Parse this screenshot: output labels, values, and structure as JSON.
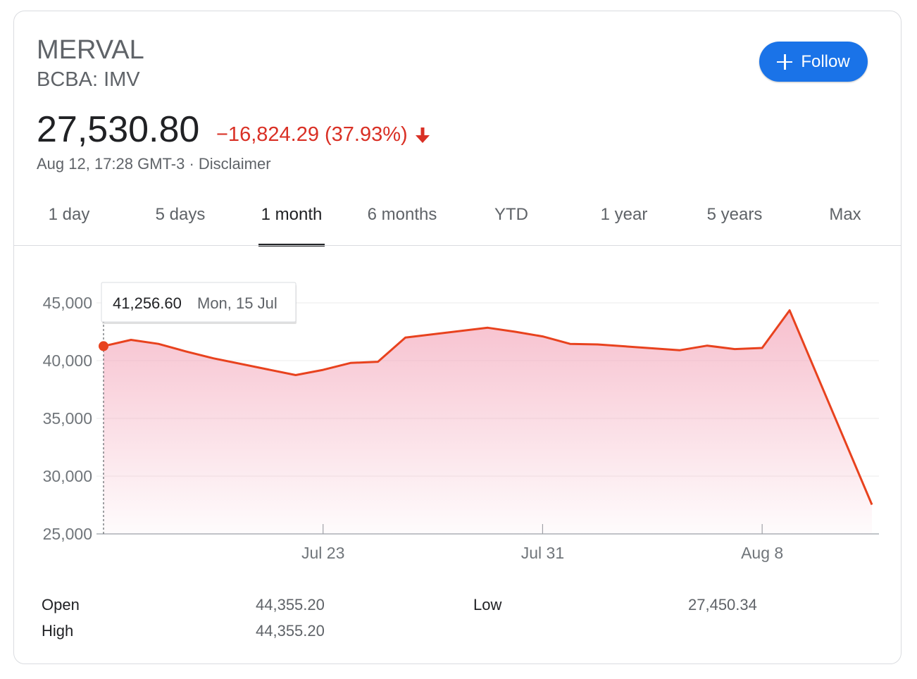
{
  "header": {
    "name": "MERVAL",
    "ticker": "BCBA: IMV",
    "follow_label": "Follow"
  },
  "quote": {
    "price": "27,530.80",
    "change": "−16,824.29 (37.93%)",
    "timestamp": "Aug 12, 17:28 GMT-3 · Disclaimer",
    "change_color": "#d93025"
  },
  "tabs": [
    {
      "label": "1 day"
    },
    {
      "label": "5 days"
    },
    {
      "label": "1 month",
      "active": true
    },
    {
      "label": "6 months"
    },
    {
      "label": "YTD"
    },
    {
      "label": "1 year"
    },
    {
      "label": "5 years"
    },
    {
      "label": "Max"
    }
  ],
  "tooltip": {
    "value": "41,256.60",
    "date": "Mon, 15 Jul"
  },
  "chart_data": {
    "type": "area",
    "ylim": [
      25000,
      45000
    ],
    "yticks": [
      45000,
      40000,
      35000,
      30000,
      25000
    ],
    "ytick_labels": [
      "45,000",
      "40,000",
      "35,000",
      "30,000",
      "25,000"
    ],
    "xlim": [
      "2019-07-15",
      "2019-08-12"
    ],
    "xticks": [
      "2019-07-23",
      "2019-07-31",
      "2019-08-08"
    ],
    "xtick_labels": [
      "Jul 23",
      "Jul 31",
      "Aug 8"
    ],
    "line_color": "#e8421e",
    "fill_color": "#f4aabd",
    "grid": true,
    "series": [
      {
        "x": [
          "2019-07-15",
          "2019-07-16",
          "2019-07-17",
          "2019-07-18",
          "2019-07-19",
          "2019-07-22",
          "2019-07-23",
          "2019-07-24",
          "2019-07-25",
          "2019-07-26",
          "2019-07-29",
          "2019-07-30",
          "2019-07-31",
          "2019-08-01",
          "2019-08-02",
          "2019-08-05",
          "2019-08-06",
          "2019-08-07",
          "2019-08-08",
          "2019-08-09",
          "2019-08-12"
        ],
        "values": [
          41256.6,
          41800,
          41450,
          40800,
          40200,
          38750,
          39200,
          39800,
          39900,
          42000,
          42850,
          42500,
          42100,
          41450,
          41400,
          40900,
          41300,
          41000,
          41100,
          44355.2,
          27530.8
        ]
      }
    ]
  },
  "stats": {
    "open_label": "Open",
    "open_value": "44,355.20",
    "high_label": "High",
    "high_value": "44,355.20",
    "low_label": "Low",
    "low_value": "27,450.34"
  }
}
